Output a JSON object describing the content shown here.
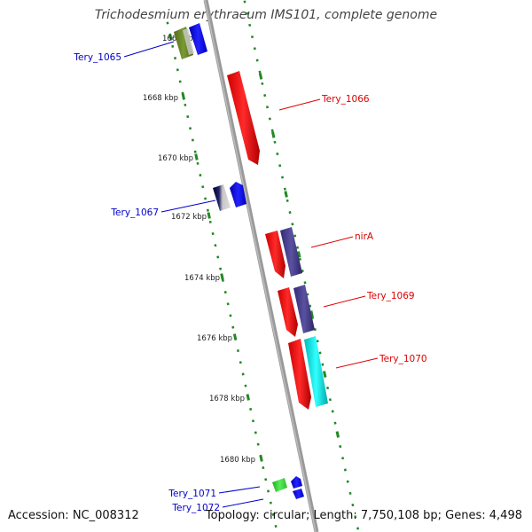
{
  "title": "Trichodesmium erythraeum IMS101, complete genome",
  "footer": {
    "accession": "Accession: NC_008312",
    "summary": "Topology: circular; Length: 7,750,108 bp; Genes: 4,498"
  },
  "ticks": [
    "1666 kbp",
    "1668 kbp",
    "1670 kbp",
    "1672 kbp",
    "1674 kbp",
    "1676 kbp",
    "1678 kbp",
    "1680 kbp"
  ],
  "genes": {
    "forward": [
      "Tery_1066",
      "nirA",
      "Tery_1069",
      "Tery_1070"
    ],
    "reverse": [
      "Tery_1065",
      "Tery_1067",
      "Tery_1071",
      "Tery_1072"
    ]
  },
  "colors": {
    "forward_label": "#dd0000",
    "reverse_label": "#0000cc",
    "tick": "#228822",
    "backbone": "#999999",
    "red_feature": "#ee0000",
    "purple_feature": "#443a88",
    "cyan_feature": "#00dddd",
    "blue_feature": "#0000ee",
    "olive_feature": "#668822",
    "green_feature": "#33cc33"
  }
}
